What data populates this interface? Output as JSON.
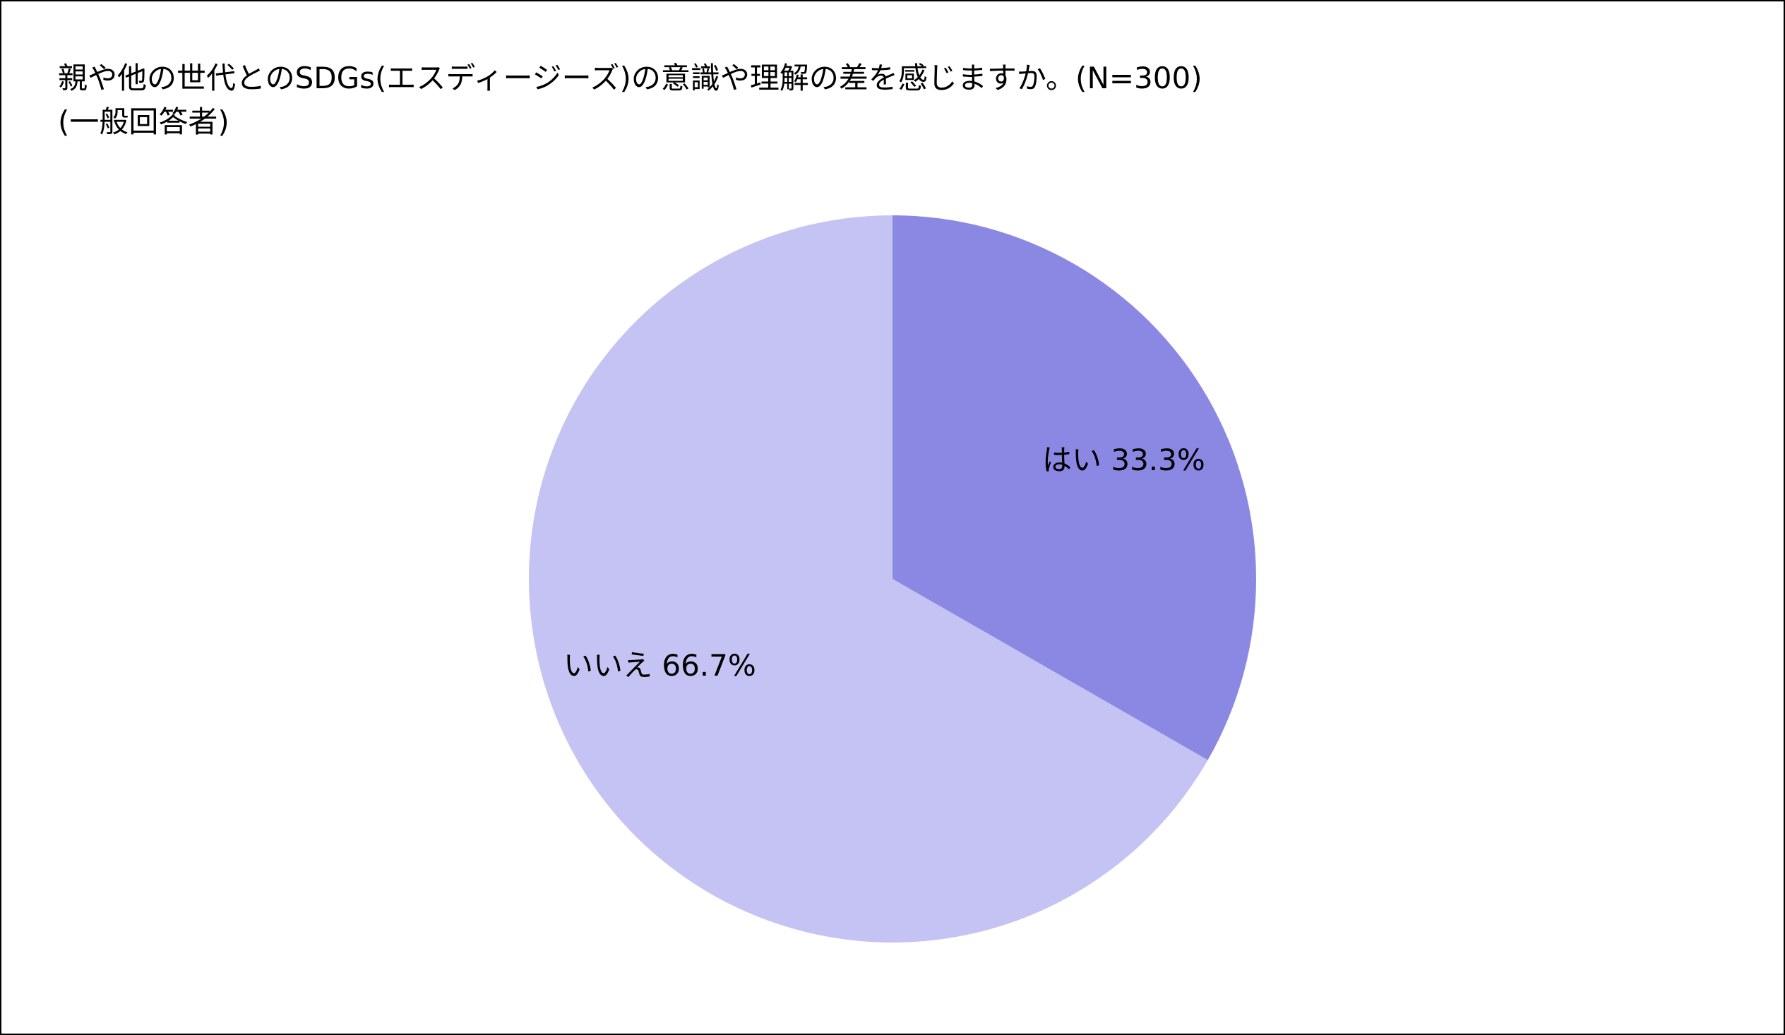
{
  "chart_data": {
    "type": "pie",
    "title": "親や他の世代とのSDGs(エスディージーズ)の意識や理解の差を感じますか。(N=300)",
    "subtitle": "(一般回答者)",
    "slices": [
      {
        "label": "はい",
        "value": 33.3,
        "value_label": "33.3%",
        "color": "#8b88e4"
      },
      {
        "label": "いいえ",
        "value": 66.7,
        "value_label": "66.7%",
        "color": "#c5c3f3"
      }
    ],
    "start_angle": "12 o'clock",
    "direction": "clockwise",
    "legend": "none"
  }
}
